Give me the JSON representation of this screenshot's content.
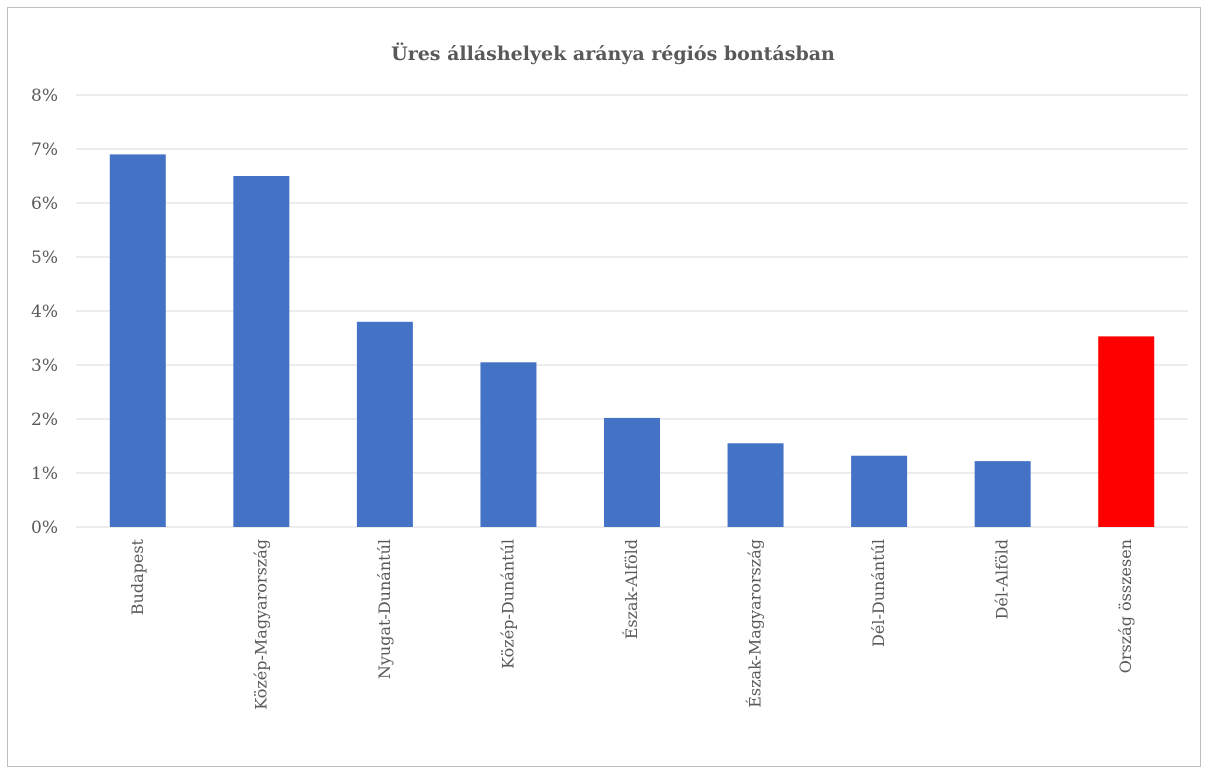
{
  "chart_data": {
    "type": "bar",
    "title": "Üres álláshelyek aránya régiós bontásban",
    "xlabel": "",
    "ylabel": "",
    "categories": [
      "Budapest",
      "Közép-Magyarország",
      "Nyugat-Dunántúl",
      "Közép-Dunántúl",
      "Észak-Alföld",
      "Észak-Magyarország",
      "Dél-Dunántúl",
      "Dél-Alföld",
      "Ország összesen"
    ],
    "values": [
      6.9,
      6.5,
      3.8,
      3.05,
      2.02,
      1.55,
      1.32,
      1.22,
      3.53
    ],
    "bar_colors": [
      "#4472c4",
      "#4472c4",
      "#4472c4",
      "#4472c4",
      "#4472c4",
      "#4472c4",
      "#4472c4",
      "#4472c4",
      "#ff0000"
    ],
    "ylim": [
      0,
      8
    ],
    "yticks": [
      "0%",
      "1%",
      "2%",
      "3%",
      "4%",
      "5%",
      "6%",
      "7%",
      "8%"
    ],
    "grid": true,
    "legend": "none"
  }
}
